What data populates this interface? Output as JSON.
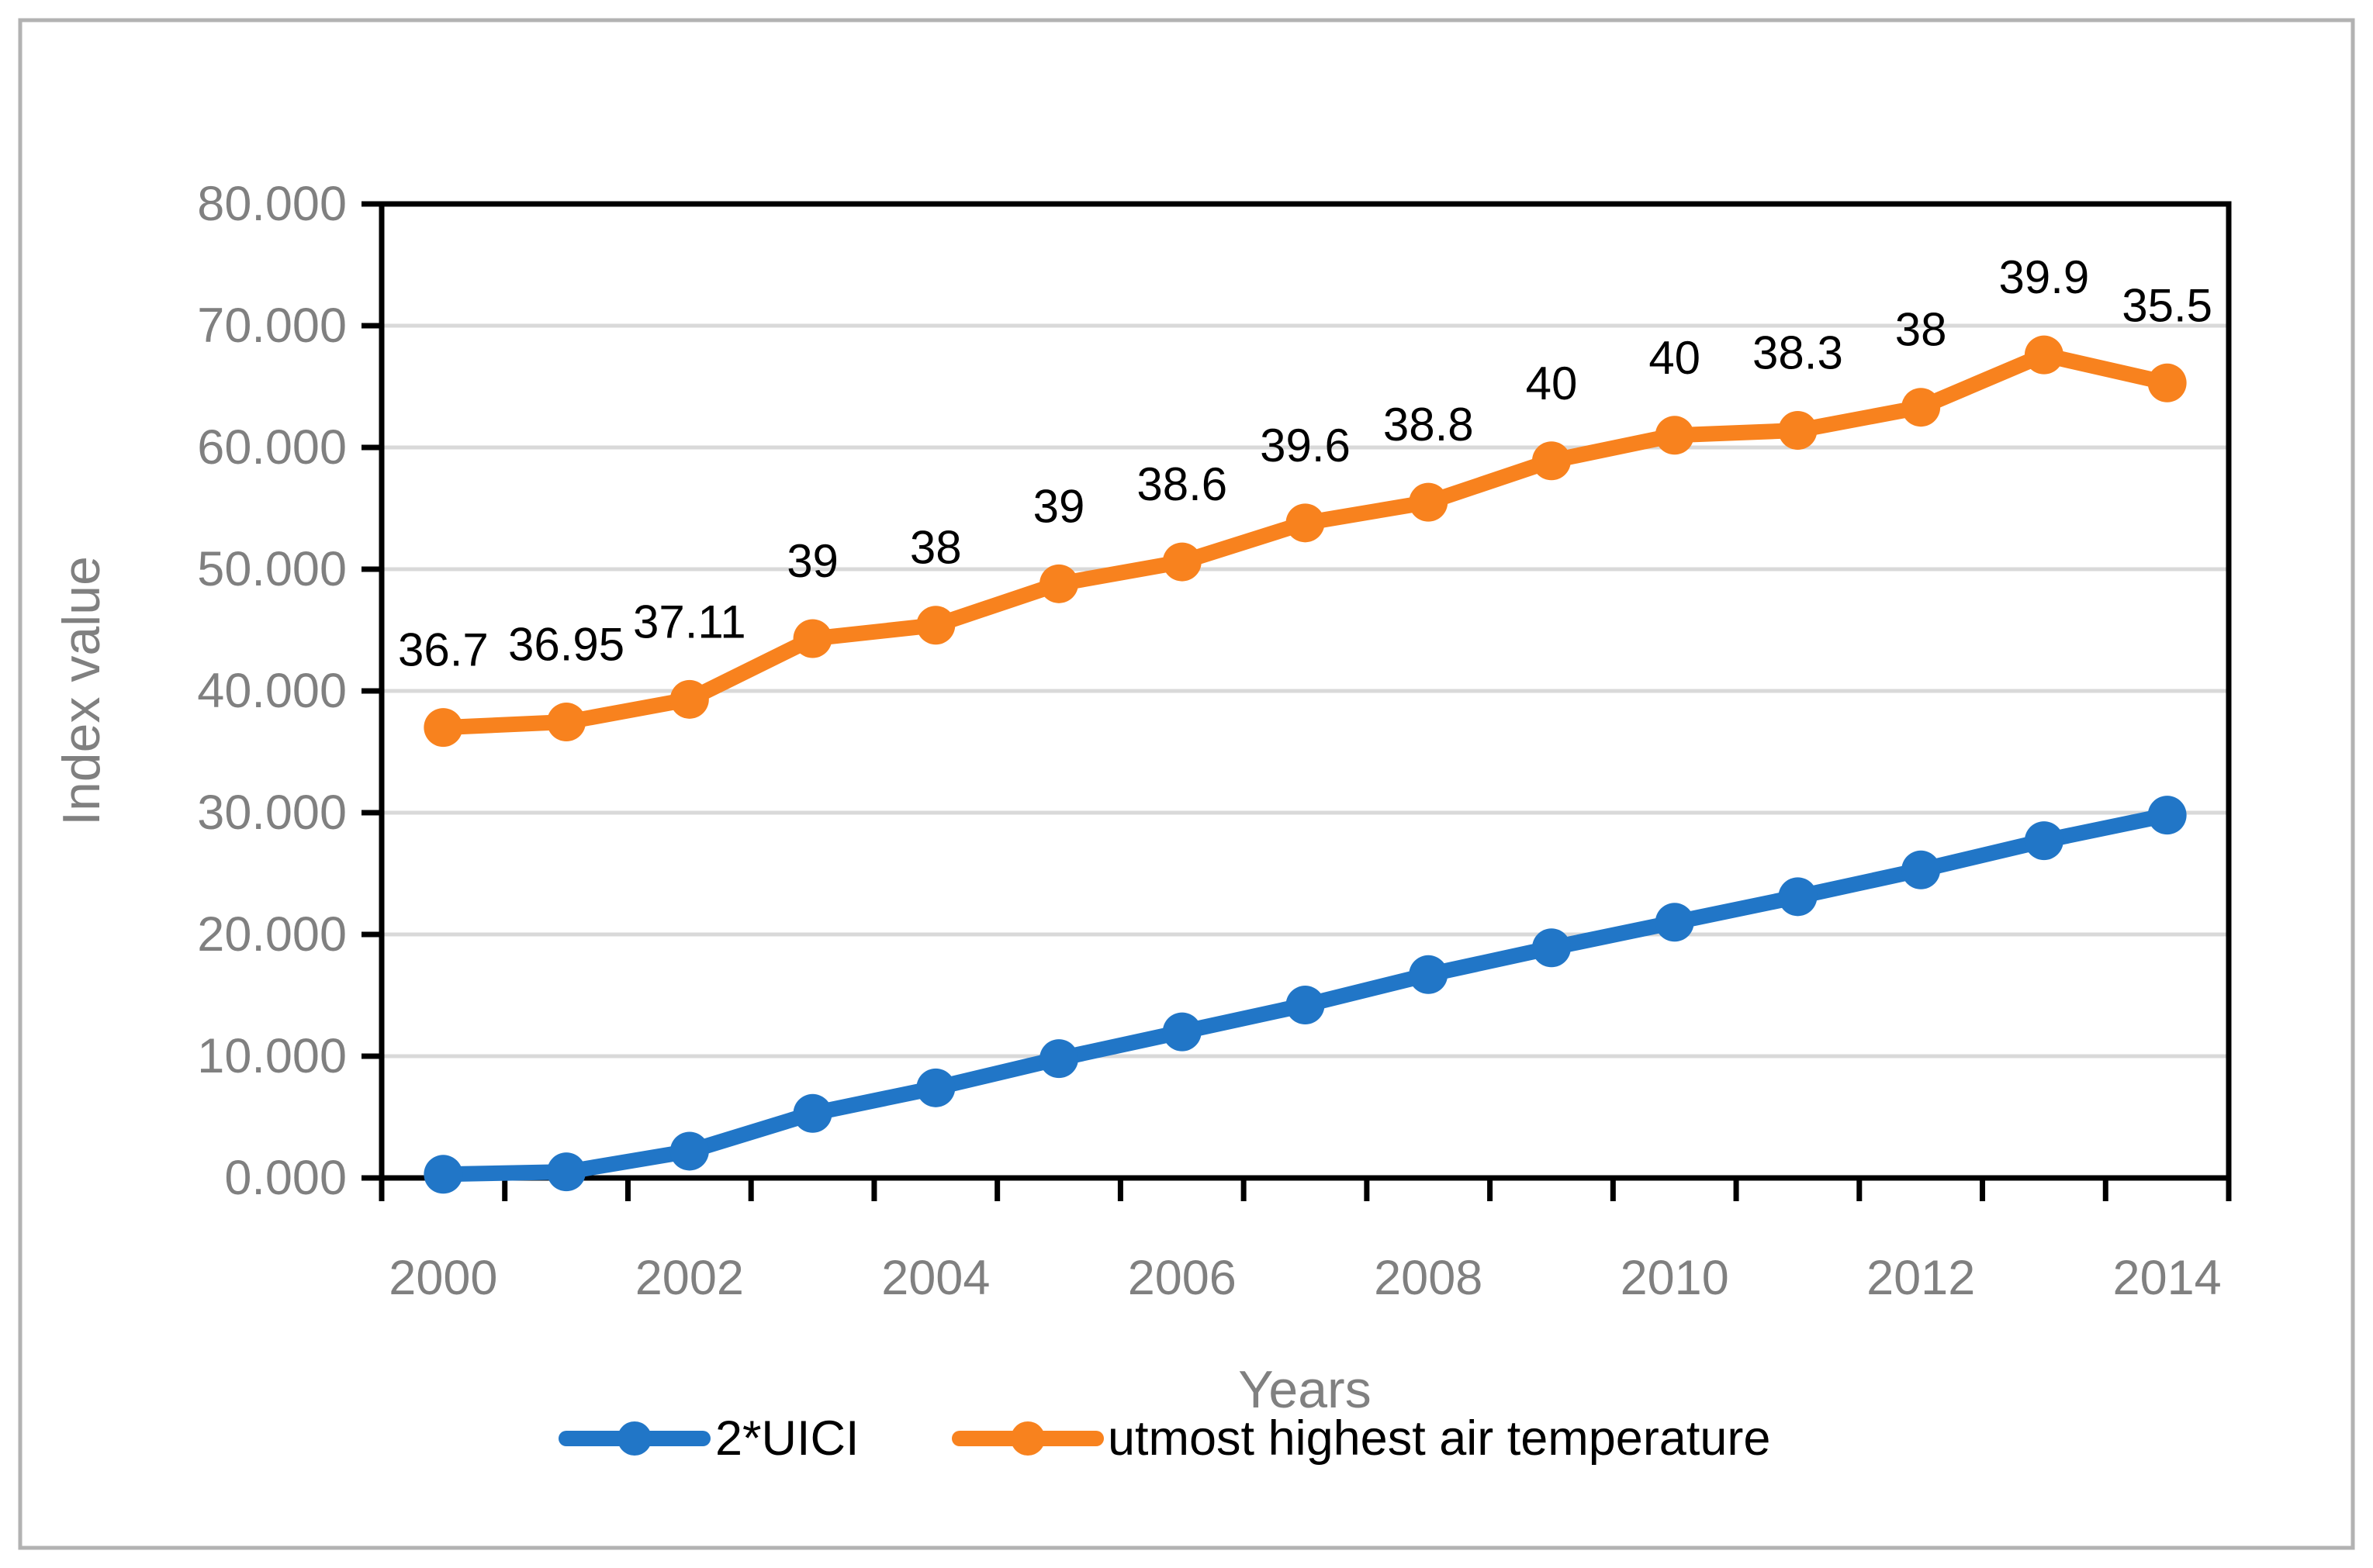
{
  "figure": {
    "background": "#ffffff",
    "border_color": "#b2b2b2"
  },
  "colors": {
    "axis_line": "#000000",
    "gridline": "#d9d9d9",
    "axis_text": "#808080",
    "data_label_text": "#000000",
    "legend_text": "#000000",
    "series_blue": "#2176c7",
    "series_orange": "#f8821e"
  },
  "chart_data": {
    "type": "line",
    "stacked": true,
    "title": "",
    "xlabel": "Years",
    "ylabel": "Index value",
    "grid": "horizontal",
    "legend_position": "bottom",
    "categories": [
      2000,
      2001,
      2002,
      2003,
      2004,
      2005,
      2006,
      2007,
      2008,
      2009,
      2010,
      2011,
      2012,
      2013,
      2014
    ],
    "x_tick_labels": [
      "2000",
      "2002",
      "2004",
      "2006",
      "2008",
      "2010",
      "2012",
      "2014"
    ],
    "x_tick_indices": [
      0,
      2,
      4,
      6,
      8,
      10,
      12,
      14
    ],
    "y_tick_labels": [
      "0.000",
      "10.000",
      "20.000",
      "30.000",
      "40.000",
      "50.000",
      "60.000",
      "70.000",
      "80.000"
    ],
    "y_tick_values": [
      0,
      10,
      20,
      30,
      40,
      50,
      60,
      70,
      80
    ],
    "ylim": [
      0,
      80
    ],
    "series": [
      {
        "name": "2*UICI",
        "color": "#2176c7",
        "values": [
          0.3,
          0.5,
          2.2,
          5.3,
          7.4,
          9.8,
          12.0,
          14.2,
          16.7,
          18.9,
          21.0,
          23.1,
          25.3,
          27.7,
          29.8
        ],
        "data_labels": []
      },
      {
        "name": "utmost highest air temperature",
        "color": "#f8821e",
        "values": [
          36.7,
          36.95,
          37.11,
          39,
          38,
          39,
          38.6,
          39.6,
          38.8,
          40,
          40,
          38.3,
          38,
          39.9,
          35.5
        ],
        "data_labels": [
          "36.7",
          "36.95",
          "37.11",
          "39",
          "38",
          "39",
          "38.6",
          "39.6",
          "38.8",
          "40",
          "40",
          "38.3",
          "38",
          "39.9",
          "35.5"
        ]
      }
    ]
  }
}
